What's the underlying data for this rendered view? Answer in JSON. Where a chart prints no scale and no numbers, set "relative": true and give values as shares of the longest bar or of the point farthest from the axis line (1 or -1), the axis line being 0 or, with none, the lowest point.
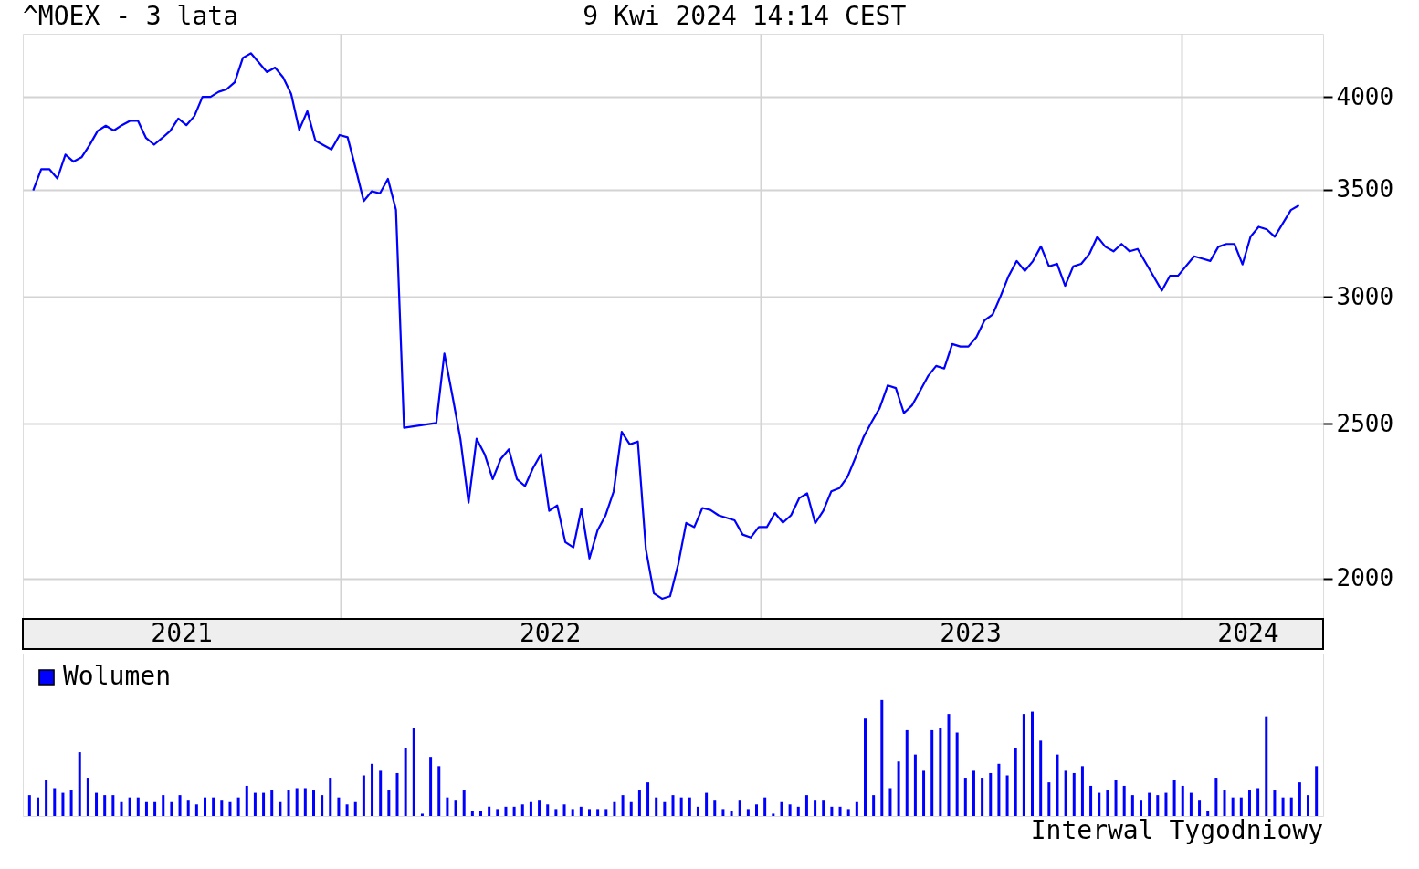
{
  "chart_data": [
    {
      "type": "line",
      "title": "^MOEX - 3 lata",
      "subtitle": "9 Kwi 2024 14:14 CEST",
      "x": [
        "2021-04-09",
        "2021-04-16",
        "2021-04-23",
        "2021-04-30",
        "2021-05-07",
        "2021-05-14",
        "2021-05-21",
        "2021-05-28",
        "2021-06-04",
        "2021-06-11",
        "2021-06-18",
        "2021-06-25",
        "2021-07-02",
        "2021-07-09",
        "2021-07-16",
        "2021-07-23",
        "2021-07-30",
        "2021-08-06",
        "2021-08-13",
        "2021-08-20",
        "2021-08-27",
        "2021-09-03",
        "2021-09-10",
        "2021-09-17",
        "2021-09-24",
        "2021-10-01",
        "2021-10-08",
        "2021-10-15",
        "2021-10-29",
        "2021-11-05",
        "2021-11-12",
        "2021-11-19",
        "2021-11-26",
        "2021-12-03",
        "2021-12-10",
        "2021-12-17",
        "2021-12-24",
        "2021-12-31",
        "2022-01-07",
        "2022-01-14",
        "2022-01-21",
        "2022-01-28",
        "2022-02-04",
        "2022-02-11",
        "2022-02-18",
        "2022-02-25",
        "2022-03-25",
        "2022-04-01",
        "2022-04-08",
        "2022-04-15",
        "2022-04-22",
        "2022-04-29",
        "2022-05-06",
        "2022-05-13",
        "2022-05-20",
        "2022-05-27",
        "2022-06-03",
        "2022-06-10",
        "2022-06-17",
        "2022-06-24",
        "2022-07-01",
        "2022-07-08",
        "2022-07-15",
        "2022-07-22",
        "2022-07-29",
        "2022-08-05",
        "2022-08-12",
        "2022-08-19",
        "2022-08-26",
        "2022-09-02",
        "2022-09-09",
        "2022-09-16",
        "2022-09-23",
        "2022-09-30",
        "2022-10-07",
        "2022-10-14",
        "2022-10-21",
        "2022-10-28",
        "2022-11-04",
        "2022-11-11",
        "2022-11-18",
        "2022-11-25",
        "2022-12-02",
        "2022-12-09",
        "2022-12-16",
        "2022-12-23",
        "2022-12-30",
        "2023-01-06",
        "2023-01-13",
        "2023-01-20",
        "2023-01-27",
        "2023-02-03",
        "2023-02-10",
        "2023-02-17",
        "2023-02-24",
        "2023-03-03",
        "2023-03-10",
        "2023-03-17",
        "2023-03-24",
        "2023-03-31",
        "2023-04-07",
        "2023-04-14",
        "2023-04-21",
        "2023-04-28",
        "2023-05-05",
        "2023-05-12",
        "2023-05-19",
        "2023-05-26",
        "2023-06-02",
        "2023-06-09",
        "2023-06-16",
        "2023-06-23",
        "2023-06-30",
        "2023-07-07",
        "2023-07-14",
        "2023-07-21",
        "2023-07-28",
        "2023-08-04",
        "2023-08-11",
        "2023-08-18",
        "2023-08-25",
        "2023-09-01",
        "2023-09-08",
        "2023-09-15",
        "2023-09-22",
        "2023-09-29",
        "2023-10-06",
        "2023-10-13",
        "2023-10-20",
        "2023-10-27",
        "2023-11-03",
        "2023-11-10",
        "2023-11-17",
        "2023-11-24",
        "2023-12-15",
        "2023-12-22",
        "2023-12-29",
        "2024-01-12",
        "2024-01-19",
        "2024-01-26",
        "2024-02-02",
        "2024-02-09",
        "2024-02-16",
        "2024-02-23",
        "2024-03-01",
        "2024-03-08",
        "2024-03-15",
        "2024-03-22",
        "2024-04-05",
        "2024-04-12"
      ],
      "series": [
        {
          "color": "#0000ff",
          "values": [
            3496,
            3605,
            3605,
            3557,
            3681,
            3644,
            3667,
            3732,
            3809,
            3837,
            3811,
            3840,
            3864,
            3864,
            3770,
            3734,
            3770,
            3809,
            3877,
            3840,
            3891,
            4000,
            4000,
            4029,
            4044,
            4085,
            4230,
            4259,
            4145,
            4172,
            4114,
            4016,
            3815,
            3918,
            3756,
            3732,
            3708,
            3786,
            3774,
            3608,
            3443,
            3492,
            3481,
            3555,
            3399,
            2485,
            2502,
            2765,
            2602,
            2443,
            2231,
            2446,
            2392,
            2308,
            2376,
            2409,
            2308,
            2285,
            2345,
            2393,
            2205,
            2222,
            2108,
            2092,
            2212,
            2059,
            2144,
            2191,
            2267,
            2470,
            2426,
            2436,
            2086,
            1958,
            1943,
            1950,
            2041,
            2167,
            2154,
            2214,
            2208,
            2191,
            2183,
            2175,
            2131,
            2122,
            2154,
            2154,
            2198,
            2168,
            2191,
            2245,
            2261,
            2166,
            2205,
            2268,
            2278,
            2315,
            2381,
            2452,
            2506,
            2557,
            2641,
            2631,
            2538,
            2566,
            2620,
            2677,
            2716,
            2706,
            2803,
            2793,
            2793,
            2831,
            2900,
            2924,
            3003,
            3092,
            3159,
            3114,
            3158,
            3226,
            3134,
            3146,
            3048,
            3134,
            3146,
            3191,
            3271,
            3224,
            3203,
            3237,
            3203,
            3214,
            3027,
            3092,
            3092,
            3180,
            3170,
            3159,
            3224,
            3237,
            3237,
            3143,
            3271,
            3318,
            3306,
            3271,
            3399,
            3422
          ]
        }
      ],
      "log": "y",
      "ylim": [
        1890,
        4380
      ],
      "yticks": [
        2000,
        2500,
        3000,
        3500,
        4000
      ],
      "xlim": [
        "2021-03-31",
        "2024-05-03"
      ],
      "xticks": [
        {
          "value": "2021-08-16",
          "label": "2021"
        },
        {
          "value": "2022-01-01",
          "label": null
        },
        {
          "value": "2022-07-02",
          "label": "2022"
        },
        {
          "value": "2023-01-01",
          "label": null
        },
        {
          "value": "2023-07-02",
          "label": "2023"
        },
        {
          "value": "2024-01-01",
          "label": null
        },
        {
          "value": "2024-02-28",
          "label": "2024"
        }
      ],
      "grid": true
    },
    {
      "type": "bar",
      "relative": true,
      "categories": [
        null,
        null,
        null,
        null,
        null,
        null,
        null,
        null,
        null,
        null,
        null,
        null,
        null,
        null,
        null,
        null,
        null,
        null,
        null,
        null,
        null,
        null,
        null,
        null,
        null,
        null,
        null,
        null,
        null,
        null,
        null,
        null,
        null,
        null,
        null,
        null,
        null,
        null,
        null,
        null,
        null,
        null,
        null,
        null,
        null,
        null,
        null,
        null,
        null,
        null,
        null,
        null,
        null,
        null,
        null,
        null,
        null,
        null,
        null,
        null,
        null,
        null,
        null,
        null,
        null,
        null,
        null,
        null,
        null,
        null,
        null,
        null,
        null,
        null,
        null,
        null,
        null,
        null,
        null,
        null,
        null,
        null,
        null,
        null,
        null,
        null,
        null,
        null,
        null,
        null,
        null,
        null,
        null,
        null,
        null,
        null,
        null,
        null,
        null,
        null,
        null,
        null,
        null,
        null,
        null,
        null,
        null,
        null,
        null,
        null,
        null,
        null,
        null,
        null,
        null,
        null,
        null,
        null,
        null,
        null,
        null,
        null,
        null,
        null,
        null,
        null,
        null,
        null,
        null,
        null,
        null,
        null,
        null,
        null,
        null,
        null,
        null,
        null,
        null,
        null,
        null,
        null,
        null,
        null,
        null,
        null,
        null,
        null,
        null,
        null,
        null,
        null,
        null,
        null,
        null
      ],
      "series": [
        {
          "name": "Wolumen",
          "color": "#0000ff",
          "values": [
            0.18,
            0.16,
            0.31,
            0.24,
            0.2,
            0.22,
            0.55,
            0.33,
            0.2,
            0.18,
            0.18,
            0.12,
            0.16,
            0.16,
            0.12,
            0.12,
            0.18,
            0.12,
            0.18,
            0.14,
            0.1,
            0.16,
            0.16,
            0.14,
            0.12,
            0.16,
            0.26,
            0.2,
            0.2,
            0.22,
            0.12,
            0.22,
            0.24,
            0.24,
            0.22,
            0.18,
            0.33,
            0.16,
            0.1,
            0.12,
            0.35,
            0.45,
            0.39,
            0.22,
            0.37,
            0.59,
            0.76,
            0.02,
            0.51,
            0.43,
            0.16,
            0.14,
            0.22,
            0.04,
            0.04,
            0.08,
            0.06,
            0.08,
            0.08,
            0.1,
            0.12,
            0.14,
            0.1,
            0.06,
            0.1,
            0.06,
            0.08,
            0.06,
            0.06,
            0.06,
            0.12,
            0.18,
            0.12,
            0.22,
            0.29,
            0.16,
            0.12,
            0.18,
            0.16,
            0.16,
            0.08,
            0.2,
            0.14,
            0.06,
            0.04,
            0.14,
            0.06,
            0.1,
            0.16,
            0.02,
            0.12,
            0.1,
            0.08,
            0.18,
            0.14,
            0.14,
            0.08,
            0.08,
            0.06,
            0.12,
            0.84,
            0.18,
            1,
            0.24,
            0.47,
            0.74,
            0.53,
            0.39,
            0.74,
            0.76,
            0.88,
            0.72,
            0.33,
            0.39,
            0.33,
            0.37,
            0.45,
            0.35,
            0.59,
            0.88,
            0.9,
            0.65,
            0.29,
            0.53,
            0.39,
            0.37,
            0.43,
            0.26,
            0.2,
            0.22,
            0.31,
            0.26,
            0.18,
            0.14,
            0.2,
            0.18,
            0.2,
            0.31,
            0.26,
            0.2,
            0.14,
            0.04,
            0.33,
            0.22,
            0.16,
            0.16,
            0.22,
            0.24,
            0.86,
            0.22,
            0.16,
            0.16,
            0.29,
            0.18,
            0.43
          ]
        }
      ],
      "legend": "top left",
      "annotations": [
        "Interwal Tygodniowy"
      ]
    }
  ]
}
